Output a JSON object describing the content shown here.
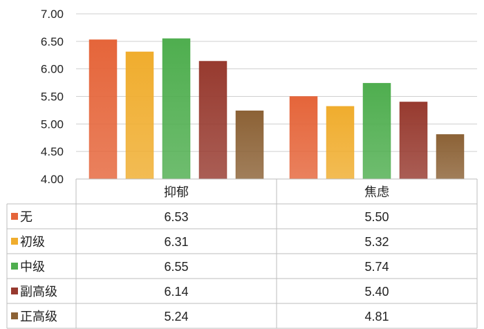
{
  "chart_data": {
    "type": "bar",
    "title": "",
    "xlabel": "",
    "ylabel": "",
    "ylim": [
      4.0,
      7.0
    ],
    "yticks": [
      "4.00",
      "4.50",
      "5.00",
      "5.50",
      "6.00",
      "6.50",
      "7.00"
    ],
    "categories": [
      "抑郁",
      "焦虑"
    ],
    "grid": true,
    "legend": "data-table",
    "series": [
      {
        "name": "无",
        "color": "#e5653a",
        "values": [
          6.53,
          5.5
        ],
        "labels": [
          "6.53",
          "5.50"
        ]
      },
      {
        "name": "初级",
        "color": "#f0ad2e",
        "values": [
          6.31,
          5.32
        ],
        "labels": [
          "6.31",
          "5.32"
        ]
      },
      {
        "name": "中级",
        "color": "#4fae4f",
        "values": [
          6.55,
          5.74
        ],
        "labels": [
          "6.55",
          "5.74"
        ]
      },
      {
        "name": "副高级",
        "color": "#973a2f",
        "values": [
          6.14,
          5.4
        ],
        "labels": [
          "6.14",
          "5.40"
        ]
      },
      {
        "name": "正高级",
        "color": "#8c6236",
        "values": [
          5.24,
          4.81
        ],
        "labels": [
          "5.24",
          "4.81"
        ]
      }
    ]
  }
}
